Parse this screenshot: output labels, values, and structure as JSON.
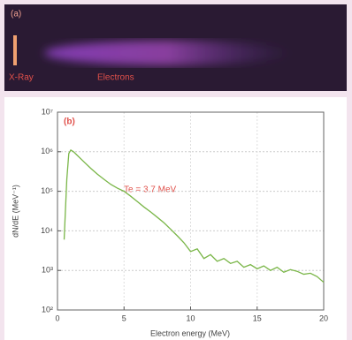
{
  "image_panel": {
    "label": "(a)",
    "annotations": [
      "X-Ray",
      "Electrons"
    ]
  },
  "chart_data": {
    "type": "line",
    "panel_label": "(b)",
    "annotation": "Te = 3.7 MeV",
    "x_label": "Electron energy  (MeV)",
    "y_label": "dN/dE (MeV⁻¹)",
    "x": [
      0.5,
      0.7,
      0.85,
      1.0,
      1.2,
      1.5,
      2,
      2.5,
      3,
      3.5,
      4,
      4.5,
      5,
      5.5,
      6,
      6.5,
      7,
      7.5,
      8,
      8.5,
      9,
      9.5,
      10,
      10.5,
      11,
      11.5,
      12,
      12.5,
      13,
      13.5,
      14,
      14.5,
      15,
      15.5,
      16,
      16.5,
      17,
      17.5,
      18,
      18.5,
      19,
      19.5,
      20
    ],
    "series": [
      {
        "color": "#7ab648",
        "values": [
          6000,
          200000,
          900000,
          1100000,
          1000000,
          800000,
          550000,
          380000,
          270000,
          200000,
          150000,
          120000,
          100000,
          75000,
          55000,
          40000,
          30000,
          22000,
          16000,
          11000,
          7500,
          5000,
          3000,
          3500,
          2000,
          2500,
          1700,
          2000,
          1500,
          1700,
          1200,
          1400,
          1100,
          1300,
          1000,
          1200,
          900,
          1050,
          950,
          800,
          850,
          700,
          500
        ]
      }
    ],
    "xlim": [
      0,
      20
    ],
    "xticks": [
      0,
      5,
      10,
      15,
      20
    ],
    "ylim": [
      100,
      10000000
    ],
    "log_y": true,
    "grid": true,
    "yticks": [
      {
        "value": 100,
        "label": "10²"
      },
      {
        "value": 1000,
        "label": "10³"
      },
      {
        "value": 10000,
        "label": "10⁴"
      },
      {
        "value": 100000,
        "label": "10⁵"
      },
      {
        "value": 1000000,
        "label": "10⁶"
      },
      {
        "value": 10000000,
        "label": "10⁷"
      }
    ]
  }
}
